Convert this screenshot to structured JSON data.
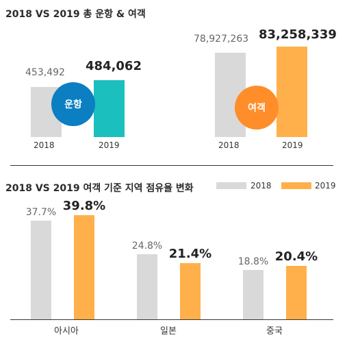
{
  "colors": {
    "gray": "#d9d9d9",
    "teal": "#1bbfbd",
    "orange": "#ffb04a",
    "blue": "#0b7fc2",
    "orange_circle": "#ff8d2a"
  },
  "chart_data": [
    {
      "type": "bar",
      "title": "2018 VS 2019 총 운항 & 여객",
      "panels": [
        {
          "label": "운항",
          "categories": [
            "2018",
            "2019"
          ],
          "values": [
            453492,
            484062
          ],
          "value_labels": [
            "453,492",
            "484,062"
          ]
        },
        {
          "label": "여객",
          "categories": [
            "2018",
            "2019"
          ],
          "values": [
            78927263,
            83258339
          ],
          "value_labels": [
            "78,927,263",
            "83,258,339"
          ]
        }
      ]
    },
    {
      "type": "bar",
      "title": "2018 VS 2019 여객 기준 지역 점유율 변화",
      "categories": [
        "아시아",
        "일본",
        "중국"
      ],
      "series": [
        {
          "name": "2018",
          "values": [
            37.7,
            24.8,
            18.8
          ],
          "labels": [
            "37.7%",
            "24.8%",
            "18.8%"
          ]
        },
        {
          "name": "2019",
          "values": [
            39.8,
            21.4,
            20.4
          ],
          "labels": [
            "39.8%",
            "21.4%",
            "20.4%"
          ]
        }
      ],
      "legend": "top-right"
    }
  ]
}
